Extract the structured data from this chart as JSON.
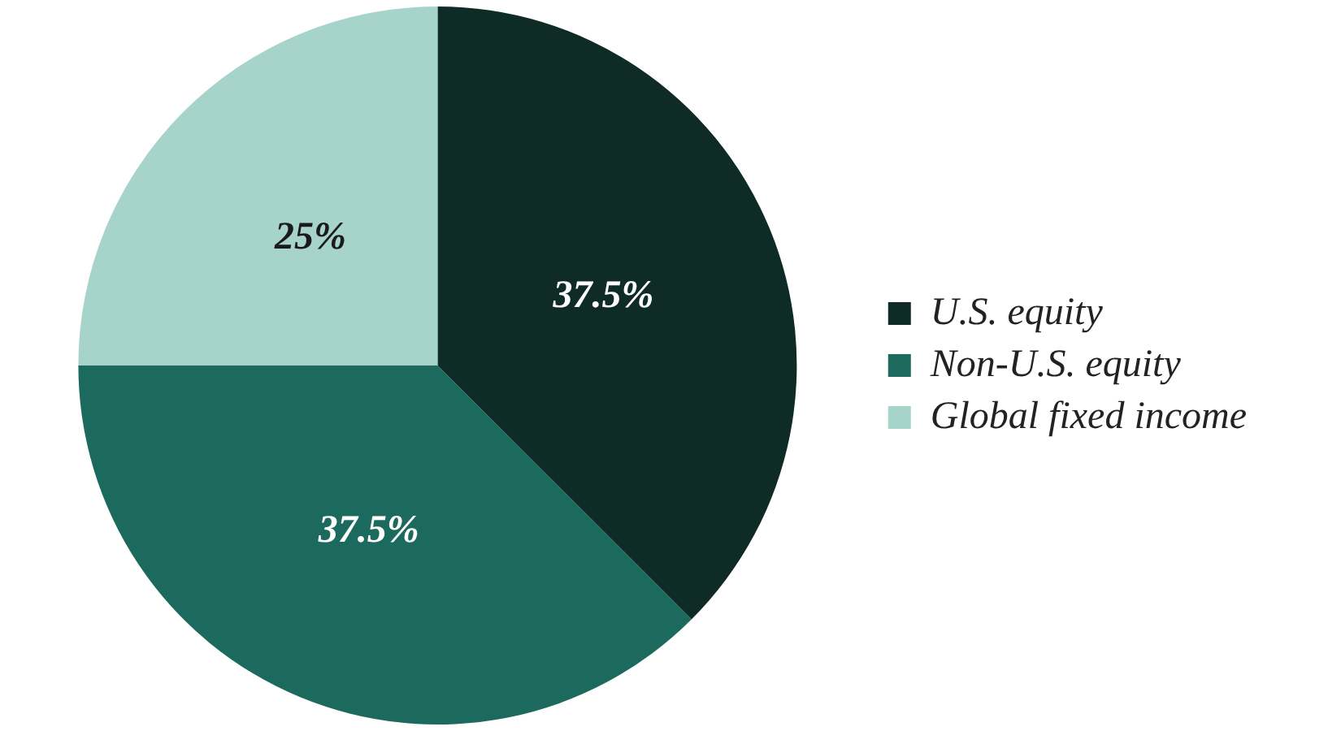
{
  "chart_data": {
    "type": "pie",
    "categories": [
      "U.S. equity",
      "Non-U.S. equity",
      "Global fixed income"
    ],
    "values": [
      37.5,
      37.5,
      25
    ],
    "colors": [
      "#0e2b25",
      "#1b6a5d",
      "#a6d3ca"
    ],
    "value_labels": [
      "37.5%",
      "37.5%",
      "25%"
    ],
    "legend": "right"
  }
}
